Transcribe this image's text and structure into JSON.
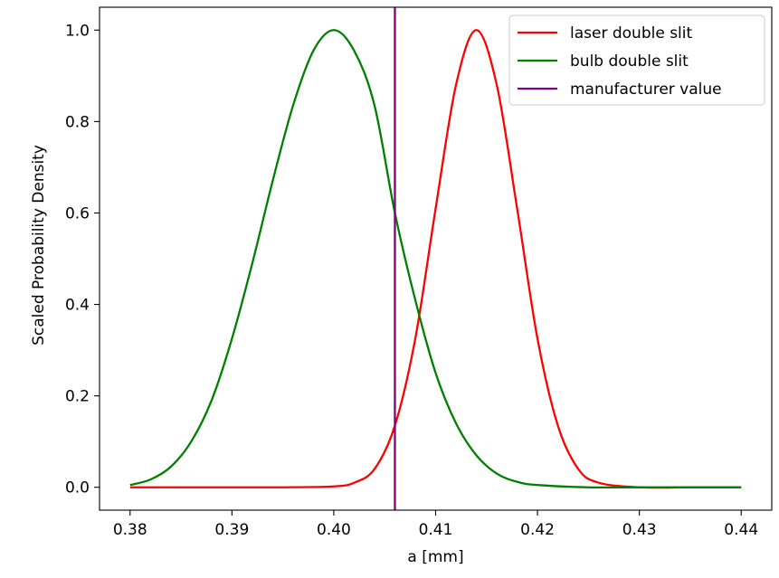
{
  "chart_data": {
    "type": "line",
    "xlabel": "a [mm]",
    "ylabel": "Scaled Probability Density",
    "xlim": [
      0.377,
      0.443
    ],
    "ylim": [
      -0.05,
      1.05
    ],
    "x_ticks": [
      "0.38",
      "0.39",
      "0.40",
      "0.41",
      "0.42",
      "0.43",
      "0.44"
    ],
    "x_tick_values": [
      0.38,
      0.39,
      0.4,
      0.41,
      0.42,
      0.43,
      0.44
    ],
    "y_ticks": [
      "0.0",
      "0.2",
      "0.4",
      "0.6",
      "0.8",
      "1.0"
    ],
    "y_tick_values": [
      0.0,
      0.2,
      0.4,
      0.6,
      0.8,
      1.0
    ],
    "grid": false,
    "legend_position": "top-right",
    "series": [
      {
        "name": "laser double slit",
        "color": "#ff0000",
        "x": [
          0.38,
          0.385,
          0.39,
          0.395,
          0.4,
          0.402,
          0.404,
          0.406,
          0.408,
          0.41,
          0.412,
          0.414,
          0.416,
          0.418,
          0.42,
          0.422,
          0.424,
          0.426,
          0.43,
          0.435,
          0.44
        ],
        "y": [
          0.0,
          0.0,
          0.0,
          0.0,
          0.002,
          0.01,
          0.04,
          0.135,
          0.325,
          0.61,
          0.88,
          1.0,
          0.88,
          0.61,
          0.325,
          0.135,
          0.04,
          0.01,
          0.0,
          0.0,
          0.0
        ]
      },
      {
        "name": "bulb double slit",
        "color": "#008000",
        "x": [
          0.38,
          0.382,
          0.384,
          0.386,
          0.388,
          0.39,
          0.392,
          0.394,
          0.396,
          0.398,
          0.4,
          0.402,
          0.404,
          0.406,
          0.408,
          0.41,
          0.412,
          0.414,
          0.416,
          0.418,
          0.42,
          0.425,
          0.43,
          0.44
        ],
        "y": [
          0.005,
          0.017,
          0.045,
          0.1,
          0.19,
          0.325,
          0.49,
          0.67,
          0.835,
          0.955,
          1.0,
          0.955,
          0.835,
          0.6,
          0.41,
          0.25,
          0.14,
          0.07,
          0.03,
          0.012,
          0.005,
          0.0,
          0.0,
          0.0
        ]
      }
    ],
    "vlines": [
      {
        "name": "manufacturer value",
        "color": "#800080",
        "x": 0.406
      }
    ]
  }
}
